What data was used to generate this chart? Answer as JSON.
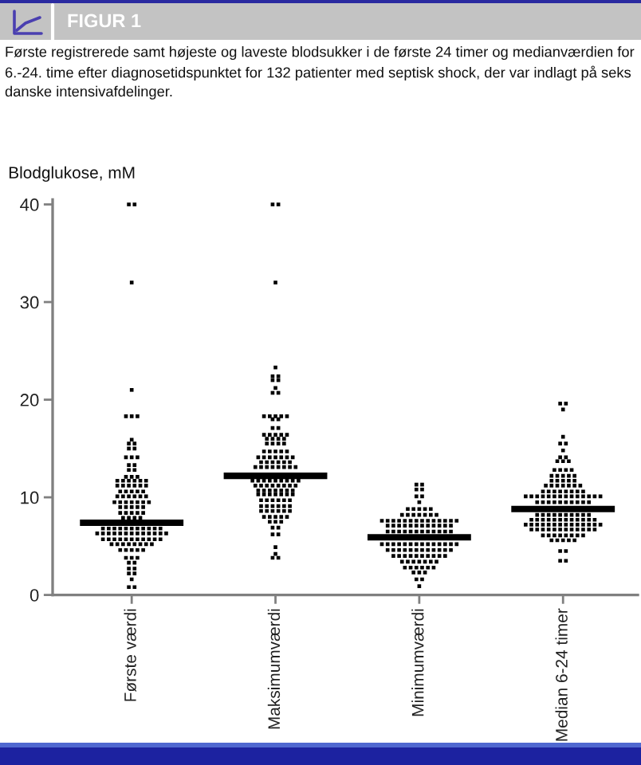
{
  "chart_data": {
    "type": "scatter",
    "title": "FIGUR 1",
    "subtitle": "Første registrerede samt højeste og laveste blodsukker i de første 24 timer og medianværdien for 6.-24. time efter diagnosetidspunktet for 132 patienter med septisk shock, der var indlagt på seks danske intensivafdelinger.",
    "ylabel": "Blodglukose, mM",
    "categories": [
      "Første værdi",
      "Maksimumværdi",
      "Minimumværdi",
      "Median 6-24 timer"
    ],
    "ylim": [
      0,
      40.5
    ],
    "yticks": [
      0,
      10,
      20,
      30,
      40
    ],
    "ref_lines": [
      {
        "axis": "y",
        "value": 7.4,
        "color": "#000000"
      },
      {
        "axis": "y",
        "value": 12.2,
        "color": "#000000"
      },
      {
        "axis": "y",
        "value": 5.9,
        "color": "#000000"
      },
      {
        "axis": "y",
        "value": 8.8,
        "color": "#000000"
      }
    ],
    "series": [
      {
        "color": "#000000",
        "marker": "square",
        "x": [
          "Første værdi",
          "Første værdi",
          "Første værdi",
          "Første værdi",
          "Første værdi",
          "Første værdi",
          "Første værdi",
          "Første værdi",
          "Første værdi",
          "Første værdi",
          "Første værdi",
          "Første værdi",
          "Første værdi",
          "Første værdi",
          "Første værdi",
          "Første værdi",
          "Første værdi",
          "Første værdi",
          "Første værdi",
          "Første værdi",
          "Første værdi",
          "Første værdi",
          "Første værdi",
          "Første værdi",
          "Første værdi",
          "Første værdi",
          "Første værdi",
          "Første værdi",
          "Første værdi",
          "Første værdi",
          "Første værdi",
          "Første værdi",
          "Første værdi",
          "Første værdi",
          "Første værdi",
          "Første værdi",
          "Første værdi",
          "Første værdi",
          "Første værdi",
          "Første værdi",
          "Første værdi",
          "Første værdi",
          "Første værdi",
          "Første værdi",
          "Første værdi",
          "Første værdi",
          "Første værdi",
          "Første værdi",
          "Første værdi",
          "Første værdi",
          "Første værdi",
          "Første værdi",
          "Første værdi",
          "Første værdi",
          "Første værdi",
          "Første værdi",
          "Første værdi",
          "Første værdi",
          "Første værdi",
          "Første værdi",
          "Første værdi",
          "Første værdi",
          "Første værdi",
          "Første værdi",
          "Første værdi",
          "Første værdi",
          "Første værdi",
          "Første værdi",
          "Første værdi",
          "Første værdi",
          "Første værdi",
          "Første værdi",
          "Første værdi",
          "Første værdi",
          "Første værdi",
          "Første værdi",
          "Første værdi",
          "Første værdi",
          "Første værdi",
          "Første værdi",
          "Første værdi",
          "Første værdi",
          "Første værdi",
          "Første værdi",
          "Første værdi",
          "Første værdi",
          "Første værdi",
          "Første værdi",
          "Første værdi",
          "Første værdi",
          "Første værdi",
          "Første værdi",
          "Første værdi",
          "Første værdi",
          "Første værdi",
          "Første værdi",
          "Første værdi",
          "Første værdi",
          "Første værdi",
          "Første værdi",
          "Første værdi",
          "Første værdi",
          "Første værdi",
          "Første værdi",
          "Første værdi",
          "Første værdi",
          "Første værdi",
          "Første værdi",
          "Første værdi",
          "Første værdi",
          "Første værdi",
          "Første værdi",
          "Første værdi",
          "Første værdi",
          "Første værdi",
          "Første værdi",
          "Første værdi",
          "Første værdi",
          "Første værdi",
          "Første værdi",
          "Første værdi",
          "Første værdi",
          "Første værdi",
          "Første værdi",
          "Første værdi",
          "Første værdi"
        ],
        "values": [
          40,
          40,
          32,
          21,
          18.3,
          18.3,
          18.3,
          15.9,
          15.5,
          15.5,
          15,
          15,
          14.1,
          14.1,
          14.1,
          13.3,
          13.3,
          12.8,
          12.8,
          12.1,
          12.1,
          12.1,
          11.7,
          11.7,
          11.7,
          11.7,
          11.7,
          11.7,
          11.2,
          11.2,
          11.2,
          11.2,
          11.2,
          11.2,
          10.6,
          10.6,
          10.6,
          10.6,
          10.6,
          10.1,
          10.1,
          10.1,
          10.1,
          10.1,
          10.1,
          9.5,
          9.5,
          9.5,
          9.5,
          9.5,
          9.5,
          9.5,
          9,
          9,
          9,
          9,
          9,
          8.4,
          8.4,
          8.4,
          8.4,
          8.4,
          7.9,
          7.9,
          7.9,
          7.9,
          6.8,
          6.8,
          6.8,
          6.8,
          6.8,
          6.8,
          6.8,
          6.8,
          6.8,
          6.8,
          6.8,
          6.3,
          6.3,
          6.3,
          6.3,
          6.3,
          6.3,
          6.3,
          6.3,
          6.3,
          6.3,
          6.3,
          6.3,
          6.3,
          5.7,
          5.7,
          5.7,
          5.7,
          5.7,
          5.7,
          5.7,
          5.7,
          5.7,
          5.7,
          5.7,
          5.2,
          5.2,
          5.2,
          5.2,
          5.2,
          5.2,
          5.2,
          5.2,
          4.6,
          4.6,
          4.6,
          4.6,
          4.6,
          3.8,
          3.8,
          3.8,
          3.3,
          3.3,
          2.7,
          2.7,
          2.2,
          2.2,
          1.6,
          0.8,
          0.8
        ]
      },
      {
        "color": "#000000",
        "marker": "square",
        "x": [
          "Maksimumværdi",
          "Maksimumværdi",
          "Maksimumværdi",
          "Maksimumværdi",
          "Maksimumværdi",
          "Maksimumværdi",
          "Maksimumværdi",
          "Maksimumværdi",
          "Maksimumværdi",
          "Maksimumværdi",
          "Maksimumværdi",
          "Maksimumværdi",
          "Maksimumværdi",
          "Maksimumværdi",
          "Maksimumværdi",
          "Maksimumværdi",
          "Maksimumværdi",
          "Maksimumværdi",
          "Maksimumværdi",
          "Maksimumværdi",
          "Maksimumværdi",
          "Maksimumværdi",
          "Maksimumværdi",
          "Maksimumværdi",
          "Maksimumværdi",
          "Maksimumværdi",
          "Maksimumværdi",
          "Maksimumværdi",
          "Maksimumværdi",
          "Maksimumværdi",
          "Maksimumværdi",
          "Maksimumværdi",
          "Maksimumværdi",
          "Maksimumværdi",
          "Maksimumværdi",
          "Maksimumværdi",
          "Maksimumværdi",
          "Maksimumværdi",
          "Maksimumværdi",
          "Maksimumværdi",
          "Maksimumværdi",
          "Maksimumværdi",
          "Maksimumværdi",
          "Maksimumværdi",
          "Maksimumværdi",
          "Maksimumværdi",
          "Maksimumværdi",
          "Maksimumværdi",
          "Maksimumværdi",
          "Maksimumværdi",
          "Maksimumværdi",
          "Maksimumværdi",
          "Maksimumværdi",
          "Maksimumværdi",
          "Maksimumværdi",
          "Maksimumværdi",
          "Maksimumværdi",
          "Maksimumværdi",
          "Maksimumværdi",
          "Maksimumværdi",
          "Maksimumværdi",
          "Maksimumværdi",
          "Maksimumværdi",
          "Maksimumværdi",
          "Maksimumværdi",
          "Maksimumværdi",
          "Maksimumværdi",
          "Maksimumværdi",
          "Maksimumværdi",
          "Maksimumværdi",
          "Maksimumværdi",
          "Maksimumværdi",
          "Maksimumværdi",
          "Maksimumværdi",
          "Maksimumværdi",
          "Maksimumværdi",
          "Maksimumværdi",
          "Maksimumværdi",
          "Maksimumværdi",
          "Maksimumværdi",
          "Maksimumværdi",
          "Maksimumværdi",
          "Maksimumværdi",
          "Maksimumværdi",
          "Maksimumværdi",
          "Maksimumværdi",
          "Maksimumværdi",
          "Maksimumværdi",
          "Maksimumværdi",
          "Maksimumværdi",
          "Maksimumværdi",
          "Maksimumværdi",
          "Maksimumværdi",
          "Maksimumværdi",
          "Maksimumværdi",
          "Maksimumværdi",
          "Maksimumværdi",
          "Maksimumværdi",
          "Maksimumværdi",
          "Maksimumværdi",
          "Maksimumværdi",
          "Maksimumværdi",
          "Maksimumværdi",
          "Maksimumværdi",
          "Maksimumværdi",
          "Maksimumværdi",
          "Maksimumværdi",
          "Maksimumværdi",
          "Maksimumværdi",
          "Maksimumværdi",
          "Maksimumværdi",
          "Maksimumværdi",
          "Maksimumværdi",
          "Maksimumværdi",
          "Maksimumværdi",
          "Maksimumværdi",
          "Maksimumværdi",
          "Maksimumværdi",
          "Maksimumværdi",
          "Maksimumværdi",
          "Maksimumværdi",
          "Maksimumværdi",
          "Maksimumværdi",
          "Maksimumværdi"
        ],
        "values": [
          40,
          40,
          32,
          23.3,
          22.4,
          22.4,
          22,
          22,
          21.2,
          20.7,
          20.7,
          18.3,
          18.3,
          18.3,
          18.3,
          18.3,
          18,
          18,
          17.1,
          17.1,
          16.4,
          16.4,
          16.4,
          16.4,
          16.4,
          16,
          16,
          16,
          16,
          15.5,
          15.5,
          15.5,
          15.5,
          14.7,
          14.7,
          14.7,
          14.7,
          14.7,
          14.1,
          14.1,
          14.1,
          14.1,
          14.1,
          14.1,
          14.1,
          13.6,
          13.6,
          13.6,
          13.6,
          13.6,
          13.6,
          13.1,
          13.1,
          13.1,
          13.1,
          13.1,
          13.1,
          13.1,
          13.1,
          11.7,
          11.7,
          11.7,
          11.7,
          11.7,
          11.7,
          11.7,
          11.7,
          11.7,
          11.2,
          11.2,
          11.2,
          11.2,
          11.2,
          11.2,
          11.2,
          11.2,
          10.7,
          10.7,
          10.7,
          10.7,
          10.7,
          10.7,
          10.7,
          10.3,
          10.3,
          10.3,
          10.3,
          10.3,
          10.3,
          10.3,
          9.7,
          9.7,
          9.7,
          9.7,
          9.7,
          9.7,
          9.1,
          9.1,
          9.1,
          9.1,
          9.1,
          9.1,
          8.6,
          8.6,
          8.6,
          8.6,
          8.6,
          8.6,
          8,
          8,
          8,
          8,
          8,
          7.5,
          7.5,
          7.5,
          6.9,
          6.9,
          6.2,
          6.2,
          4.9,
          4.2,
          3.8,
          3.8
        ]
      },
      {
        "color": "#000000",
        "marker": "square",
        "x": [
          "Minimumværdi",
          "Minimumværdi",
          "Minimumværdi",
          "Minimumværdi",
          "Minimumværdi",
          "Minimumværdi",
          "Minimumværdi",
          "Minimumværdi",
          "Minimumværdi",
          "Minimumværdi",
          "Minimumværdi",
          "Minimumværdi",
          "Minimumværdi",
          "Minimumværdi",
          "Minimumværdi",
          "Minimumværdi",
          "Minimumværdi",
          "Minimumværdi",
          "Minimumværdi",
          "Minimumværdi",
          "Minimumværdi",
          "Minimumværdi",
          "Minimumværdi",
          "Minimumværdi",
          "Minimumværdi",
          "Minimumværdi",
          "Minimumværdi",
          "Minimumværdi",
          "Minimumværdi",
          "Minimumværdi",
          "Minimumværdi",
          "Minimumværdi",
          "Minimumværdi",
          "Minimumværdi",
          "Minimumværdi",
          "Minimumværdi",
          "Minimumværdi",
          "Minimumværdi",
          "Minimumværdi",
          "Minimumværdi",
          "Minimumværdi",
          "Minimumværdi",
          "Minimumværdi",
          "Minimumværdi",
          "Minimumværdi",
          "Minimumværdi",
          "Minimumværdi",
          "Minimumværdi",
          "Minimumværdi",
          "Minimumværdi",
          "Minimumværdi",
          "Minimumværdi",
          "Minimumværdi",
          "Minimumværdi",
          "Minimumværdi",
          "Minimumværdi",
          "Minimumværdi",
          "Minimumværdi",
          "Minimumværdi",
          "Minimumværdi",
          "Minimumværdi",
          "Minimumværdi",
          "Minimumværdi",
          "Minimumværdi",
          "Minimumværdi",
          "Minimumværdi",
          "Minimumværdi",
          "Minimumværdi",
          "Minimumværdi",
          "Minimumværdi",
          "Minimumværdi",
          "Minimumværdi",
          "Minimumværdi",
          "Minimumværdi",
          "Minimumværdi",
          "Minimumværdi",
          "Minimumværdi",
          "Minimumværdi",
          "Minimumværdi",
          "Minimumværdi",
          "Minimumværdi",
          "Minimumværdi",
          "Minimumværdi",
          "Minimumværdi",
          "Minimumværdi",
          "Minimumværdi",
          "Minimumværdi",
          "Minimumværdi",
          "Minimumværdi",
          "Minimumværdi",
          "Minimumværdi",
          "Minimumværdi",
          "Minimumværdi",
          "Minimumværdi",
          "Minimumværdi",
          "Minimumværdi",
          "Minimumværdi",
          "Minimumværdi",
          "Minimumværdi",
          "Minimumværdi",
          "Minimumværdi",
          "Minimumværdi",
          "Minimumværdi",
          "Minimumværdi",
          "Minimumværdi",
          "Minimumværdi",
          "Minimumværdi",
          "Minimumværdi",
          "Minimumværdi",
          "Minimumværdi",
          "Minimumværdi",
          "Minimumværdi"
        ],
        "values": [
          11.3,
          11.3,
          10.8,
          10.8,
          10.1,
          10.1,
          9.5,
          8.8,
          8.8,
          8.8,
          8.8,
          8.8,
          8.2,
          8.2,
          8.2,
          8.2,
          8.2,
          8.2,
          8.2,
          7.6,
          7.6,
          7.6,
          7.6,
          7.6,
          7.6,
          7.6,
          7.6,
          7.6,
          7.6,
          7.6,
          7.6,
          7.6,
          7.6,
          7.1,
          7.1,
          7.1,
          7.1,
          7.1,
          7.1,
          7.1,
          7.1,
          7.1,
          7.1,
          7.1,
          7.1,
          6.5,
          6.5,
          6.5,
          6.5,
          6.5,
          6.5,
          6.5,
          6.5,
          6.5,
          6.5,
          6.5,
          6.5,
          5.2,
          5.2,
          5.2,
          5.2,
          5.2,
          5.2,
          5.2,
          5.2,
          5.2,
          5.2,
          5.2,
          5.2,
          5.2,
          5.2,
          4.6,
          4.6,
          4.6,
          4.6,
          4.6,
          4.6,
          4.6,
          4.6,
          4.6,
          4.6,
          4.6,
          4.6,
          4,
          4,
          4,
          4,
          4,
          4,
          4,
          4,
          4,
          4,
          3.4,
          3.4,
          3.4,
          3.4,
          3.4,
          3.4,
          3.4,
          2.8,
          2.8,
          2.8,
          2.8,
          2.8,
          2.8,
          2.3,
          2.3,
          2.3,
          1.6,
          1.6,
          0.9
        ]
      },
      {
        "color": "#000000",
        "marker": "square",
        "x": [
          "Median 6-24 timer",
          "Median 6-24 timer",
          "Median 6-24 timer",
          "Median 6-24 timer",
          "Median 6-24 timer",
          "Median 6-24 timer",
          "Median 6-24 timer",
          "Median 6-24 timer",
          "Median 6-24 timer",
          "Median 6-24 timer",
          "Median 6-24 timer",
          "Median 6-24 timer",
          "Median 6-24 timer",
          "Median 6-24 timer",
          "Median 6-24 timer",
          "Median 6-24 timer",
          "Median 6-24 timer",
          "Median 6-24 timer",
          "Median 6-24 timer",
          "Median 6-24 timer",
          "Median 6-24 timer",
          "Median 6-24 timer",
          "Median 6-24 timer",
          "Median 6-24 timer",
          "Median 6-24 timer",
          "Median 6-24 timer",
          "Median 6-24 timer",
          "Median 6-24 timer",
          "Median 6-24 timer",
          "Median 6-24 timer",
          "Median 6-24 timer",
          "Median 6-24 timer",
          "Median 6-24 timer",
          "Median 6-24 timer",
          "Median 6-24 timer",
          "Median 6-24 timer",
          "Median 6-24 timer",
          "Median 6-24 timer",
          "Median 6-24 timer",
          "Median 6-24 timer",
          "Median 6-24 timer",
          "Median 6-24 timer",
          "Median 6-24 timer",
          "Median 6-24 timer",
          "Median 6-24 timer",
          "Median 6-24 timer",
          "Median 6-24 timer",
          "Median 6-24 timer",
          "Median 6-24 timer",
          "Median 6-24 timer",
          "Median 6-24 timer",
          "Median 6-24 timer",
          "Median 6-24 timer",
          "Median 6-24 timer",
          "Median 6-24 timer",
          "Median 6-24 timer",
          "Median 6-24 timer",
          "Median 6-24 timer",
          "Median 6-24 timer",
          "Median 6-24 timer",
          "Median 6-24 timer",
          "Median 6-24 timer",
          "Median 6-24 timer",
          "Median 6-24 timer",
          "Median 6-24 timer",
          "Median 6-24 timer",
          "Median 6-24 timer",
          "Median 6-24 timer",
          "Median 6-24 timer",
          "Median 6-24 timer",
          "Median 6-24 timer",
          "Median 6-24 timer",
          "Median 6-24 timer",
          "Median 6-24 timer",
          "Median 6-24 timer",
          "Median 6-24 timer",
          "Median 6-24 timer",
          "Median 6-24 timer",
          "Median 6-24 timer",
          "Median 6-24 timer",
          "Median 6-24 timer",
          "Median 6-24 timer",
          "Median 6-24 timer",
          "Median 6-24 timer",
          "Median 6-24 timer",
          "Median 6-24 timer",
          "Median 6-24 timer",
          "Median 6-24 timer",
          "Median 6-24 timer",
          "Median 6-24 timer",
          "Median 6-24 timer",
          "Median 6-24 timer",
          "Median 6-24 timer",
          "Median 6-24 timer",
          "Median 6-24 timer",
          "Median 6-24 timer",
          "Median 6-24 timer",
          "Median 6-24 timer",
          "Median 6-24 timer",
          "Median 6-24 timer",
          "Median 6-24 timer",
          "Median 6-24 timer",
          "Median 6-24 timer",
          "Median 6-24 timer",
          "Median 6-24 timer",
          "Median 6-24 timer",
          "Median 6-24 timer",
          "Median 6-24 timer",
          "Median 6-24 timer",
          "Median 6-24 timer",
          "Median 6-24 timer",
          "Median 6-24 timer",
          "Median 6-24 timer",
          "Median 6-24 timer",
          "Median 6-24 timer",
          "Median 6-24 timer",
          "Median 6-24 timer",
          "Median 6-24 timer",
          "Median 6-24 timer",
          "Median 6-24 timer",
          "Median 6-24 timer",
          "Median 6-24 timer",
          "Median 6-24 timer",
          "Median 6-24 timer",
          "Median 6-24 timer",
          "Median 6-24 timer",
          "Median 6-24 timer",
          "Median 6-24 timer",
          "Median 6-24 timer",
          "Median 6-24 timer"
        ],
        "values": [
          19.6,
          19.6,
          19,
          16.2,
          15.5,
          15.5,
          14.8,
          14.1,
          14.1,
          13.7,
          13.7,
          13.7,
          12.8,
          12.8,
          12.8,
          12.8,
          12.2,
          12.2,
          12.2,
          12.2,
          12.2,
          11.7,
          11.7,
          11.7,
          11.7,
          11.7,
          11.2,
          11.2,
          11.2,
          11.2,
          11.2,
          11.2,
          11.2,
          10.6,
          10.6,
          10.6,
          10.6,
          10.6,
          10.6,
          10.6,
          10.6,
          10.1,
          10.1,
          10.1,
          10.1,
          10.1,
          10.1,
          10.1,
          10.1,
          10.1,
          10.1,
          10.1,
          10.1,
          10.1,
          10.1,
          9.5,
          9.5,
          9.5,
          9.5,
          9.5,
          9.5,
          9.5,
          9.5,
          9.5,
          9.5,
          8.2,
          8.2,
          8.2,
          8.2,
          8.2,
          8.2,
          8.2,
          8.2,
          8.2,
          8.2,
          7.7,
          7.7,
          7.7,
          7.7,
          7.7,
          7.7,
          7.7,
          7.7,
          7.7,
          7.7,
          7.7,
          7.7,
          7.2,
          7.2,
          7.2,
          7.2,
          7.2,
          7.2,
          7.2,
          7.2,
          7.2,
          7.2,
          7.2,
          7.2,
          7.2,
          7.2,
          6.7,
          6.7,
          6.7,
          6.7,
          6.7,
          6.7,
          6.7,
          6.7,
          6.7,
          6.7,
          6.7,
          6.7,
          6.1,
          6.1,
          6.1,
          6.1,
          6.1,
          6.1,
          6.1,
          6.1,
          5.6,
          5.6,
          5.6,
          5.6,
          5.6,
          4.5,
          4.5,
          3.5,
          3.5
        ]
      }
    ]
  }
}
